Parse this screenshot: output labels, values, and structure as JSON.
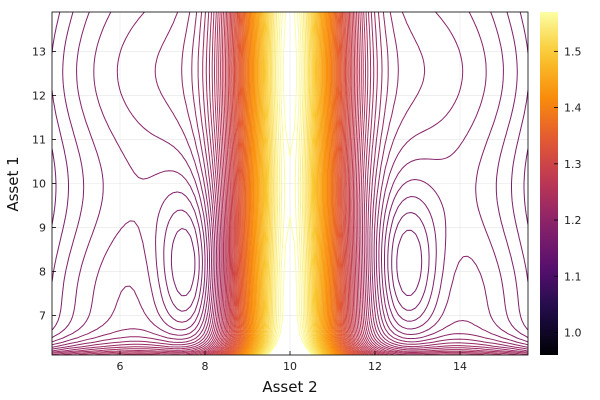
{
  "chart_data": {
    "type": "contour",
    "title": "",
    "xlabel": "Asset 2",
    "ylabel": "Asset 1",
    "xlim": [
      4.4,
      15.6
    ],
    "ylim": [
      6.1,
      13.9
    ],
    "xticks": [
      6,
      8,
      10,
      12,
      14
    ],
    "yticks": [
      7,
      8,
      9,
      10,
      11,
      12,
      13
    ],
    "colorbar": {
      "colormap": "inferno",
      "range": [
        0.96,
        1.57
      ],
      "ticks": [
        1.0,
        1.1,
        1.2,
        1.3,
        1.4,
        1.5
      ]
    },
    "features": {
      "ridge_x": 10.0,
      "ridge_peak_value": 1.57,
      "side_minima_x": [
        7.7,
        12.7
      ],
      "side_minima_y": 8.0,
      "baseline_value": 1.2
    },
    "grid": true,
    "legend": "none"
  }
}
